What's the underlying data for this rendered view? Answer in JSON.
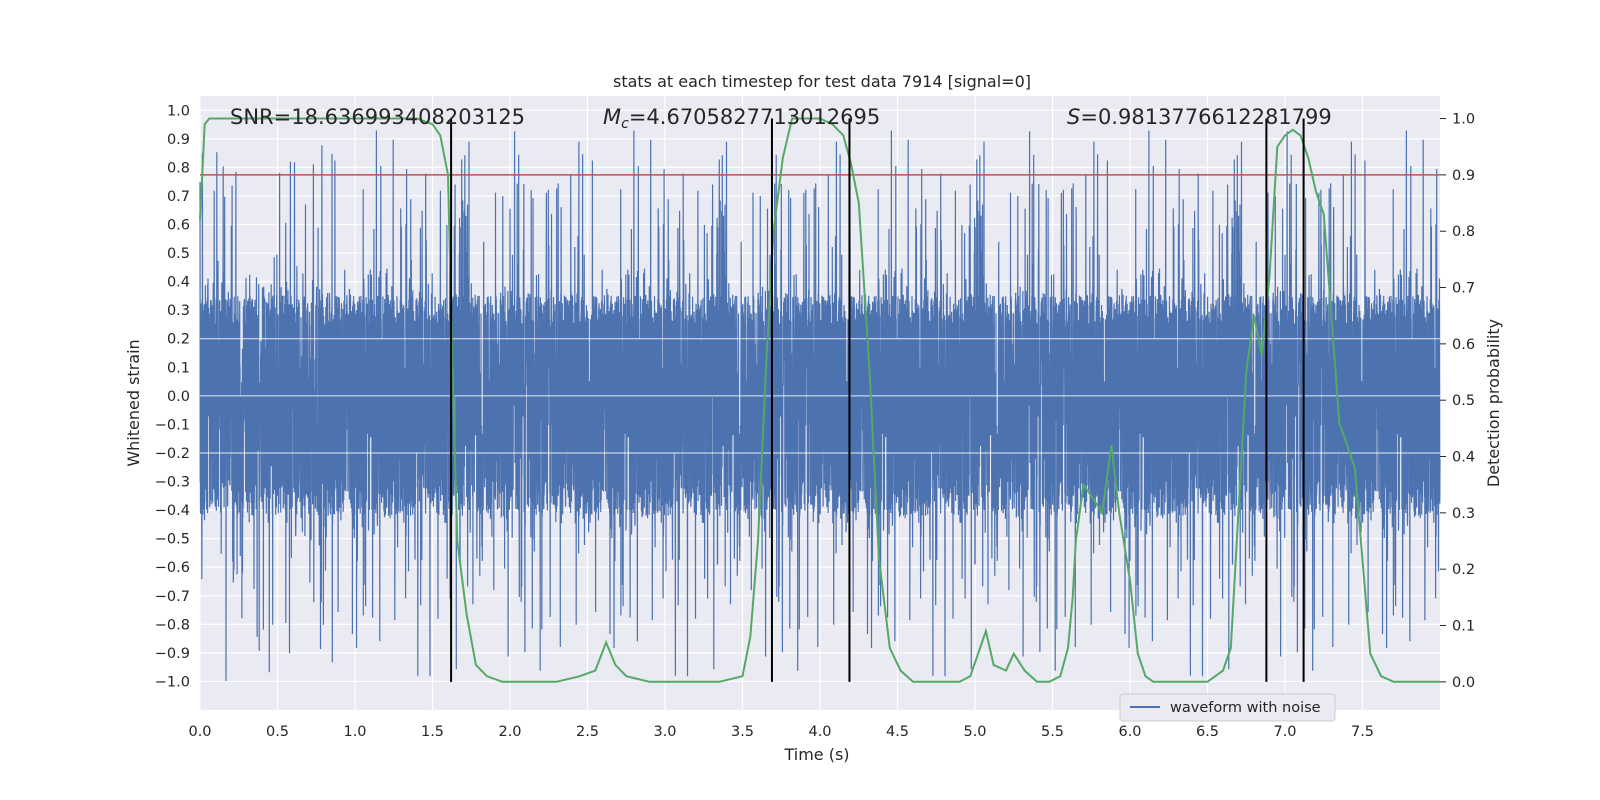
{
  "chart_data": {
    "type": "line",
    "title": "stats at each timestep for test data 7914 [signal=0]",
    "xlabel": "Time (s)",
    "ylabel": "Whitened strain",
    "y2label": "Detection probability",
    "xlim": [
      0.0,
      8.0
    ],
    "ylim": [
      -1.1,
      1.05
    ],
    "y2lim": [
      -0.05,
      1.04
    ],
    "xticks": [
      "0.0",
      "0.5",
      "1.0",
      "1.5",
      "2.0",
      "2.5",
      "3.0",
      "3.5",
      "4.0",
      "4.5",
      "5.0",
      "5.5",
      "6.0",
      "6.5",
      "7.0",
      "7.5"
    ],
    "yticks": [
      "1.0",
      "0.9",
      "0.8",
      "0.7",
      "0.6",
      "0.5",
      "0.4",
      "0.3",
      "0.2",
      "0.1",
      "0.0",
      "−0.1",
      "−0.2",
      "−0.3",
      "−0.4",
      "−0.5",
      "−0.6",
      "−0.7",
      "−0.8",
      "−0.9",
      "−1.0"
    ],
    "y2ticks": [
      "1.0",
      "0.9",
      "0.8",
      "0.7",
      "0.6",
      "0.5",
      "0.4",
      "0.3",
      "0.2",
      "0.1",
      "0.0"
    ],
    "grid": true,
    "legend": {
      "position": "bottom-right",
      "entries": [
        "waveform with noise"
      ]
    },
    "annotations": {
      "snr": "SNR=18.636993408203125",
      "mc_symbol": "M",
      "mc_sub": "c",
      "mc_value": "=4.6705827713012695",
      "s_symbol": "S",
      "s_value": "=0.9813776612281799"
    },
    "threshold": {
      "axis": "y2",
      "value": 0.9
    },
    "vlines": [
      1.62,
      3.69,
      4.19,
      6.88,
      7.12
    ],
    "waveform": {
      "name": "waveform with noise",
      "sample_count": 8192,
      "core_range": [
        -0.42,
        0.35
      ],
      "spike_max": 0.93,
      "spike_min": -1.0
    },
    "probability": {
      "x": [
        0.0,
        0.03,
        0.06,
        0.12,
        0.2,
        0.3,
        0.5,
        0.8,
        1.0,
        1.2,
        1.4,
        1.5,
        1.55,
        1.6,
        1.63,
        1.66,
        1.72,
        1.78,
        1.85,
        1.95,
        2.1,
        2.3,
        2.45,
        2.55,
        2.62,
        2.68,
        2.75,
        2.9,
        3.0,
        3.2,
        3.35,
        3.5,
        3.55,
        3.6,
        3.65,
        3.7,
        3.76,
        3.82,
        3.9,
        4.0,
        4.08,
        4.15,
        4.2,
        4.25,
        4.32,
        4.38,
        4.45,
        4.52,
        4.6,
        4.75,
        4.9,
        4.97,
        5.02,
        5.07,
        5.12,
        5.2,
        5.25,
        5.32,
        5.4,
        5.48,
        5.55,
        5.6,
        5.63,
        5.65,
        5.7,
        5.75,
        5.82,
        5.88,
        5.93,
        6.0,
        6.05,
        6.1,
        6.15,
        6.2,
        6.5,
        6.6,
        6.65,
        6.75,
        6.8,
        6.85,
        6.9,
        6.95,
        7.0,
        7.05,
        7.1,
        7.15,
        7.2,
        7.25,
        7.35,
        7.45,
        7.55,
        7.62,
        7.7,
        7.8,
        8.0
      ],
      "y": [
        0.82,
        0.99,
        1.0,
        1.0,
        1.0,
        1.0,
        1.0,
        1.0,
        1.0,
        1.0,
        1.0,
        0.99,
        0.97,
        0.9,
        0.55,
        0.25,
        0.12,
        0.03,
        0.01,
        0.0,
        0.0,
        0.0,
        0.01,
        0.02,
        0.07,
        0.03,
        0.01,
        0.0,
        0.0,
        0.0,
        0.0,
        0.01,
        0.08,
        0.25,
        0.55,
        0.8,
        0.93,
        1.0,
        1.0,
        1.0,
        0.99,
        0.97,
        0.92,
        0.85,
        0.55,
        0.22,
        0.06,
        0.02,
        0.0,
        0.0,
        0.0,
        0.01,
        0.05,
        0.09,
        0.03,
        0.02,
        0.05,
        0.02,
        0.0,
        0.0,
        0.01,
        0.06,
        0.15,
        0.25,
        0.35,
        0.33,
        0.3,
        0.42,
        0.3,
        0.18,
        0.05,
        0.01,
        0.0,
        0.0,
        0.0,
        0.02,
        0.06,
        0.55,
        0.65,
        0.58,
        0.72,
        0.95,
        0.97,
        0.98,
        0.97,
        0.93,
        0.87,
        0.83,
        0.46,
        0.38,
        0.05,
        0.01,
        0.0,
        0.0,
        0.0
      ]
    }
  }
}
